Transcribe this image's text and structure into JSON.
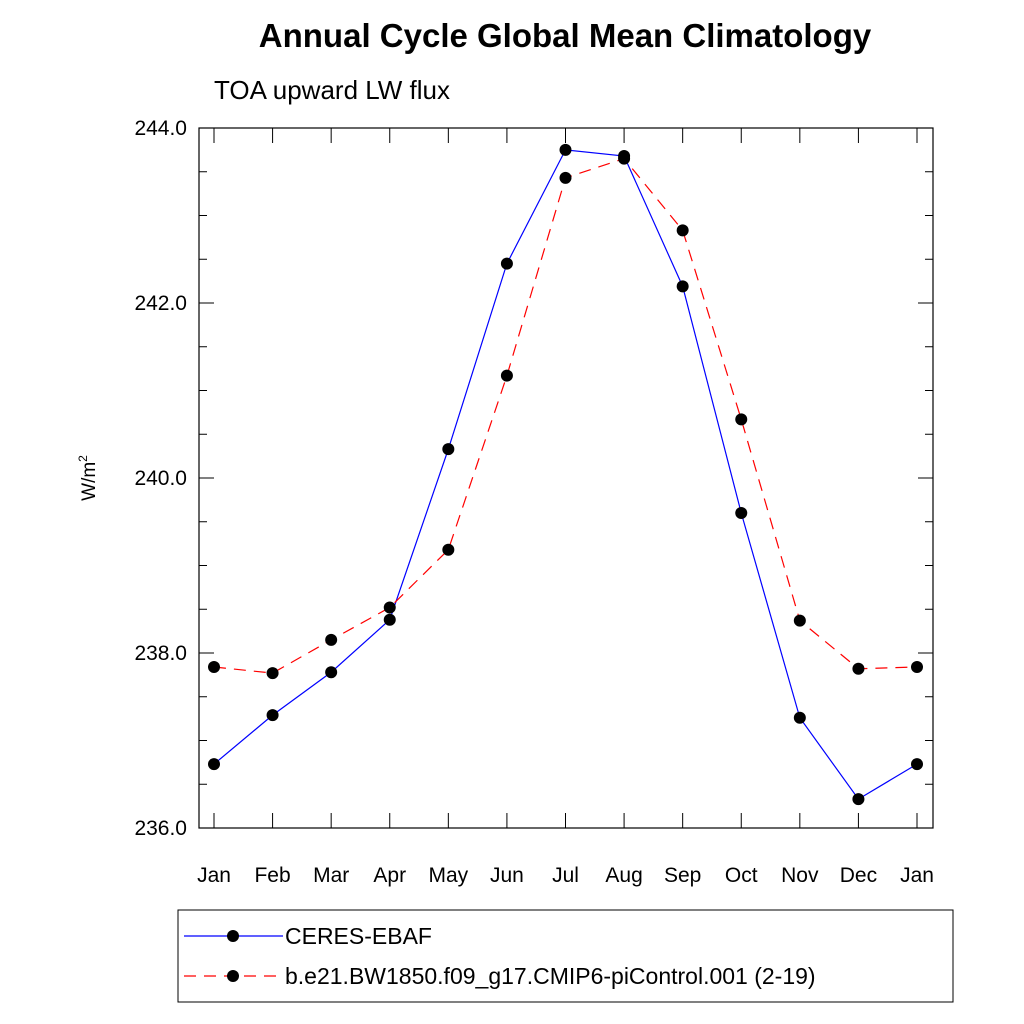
{
  "chart_data": {
    "type": "line",
    "title": "Annual Cycle Global Mean Climatology",
    "subtitle": "TOA upward LW flux",
    "ylabel": "W/m",
    "ylabel_sup": "2",
    "xlabel": "",
    "categories": [
      "Jan",
      "Feb",
      "Mar",
      "Apr",
      "May",
      "Jun",
      "Jul",
      "Aug",
      "Sep",
      "Oct",
      "Nov",
      "Dec",
      "Jan"
    ],
    "ylim": [
      236.0,
      244.0
    ],
    "yticks": [
      236.0,
      238.0,
      240.0,
      242.0,
      244.0
    ],
    "ytick_labels": [
      "236.0",
      "238.0",
      "240.0",
      "242.0",
      "244.0"
    ],
    "y_minor_step": 0.5,
    "grid": false,
    "legend_position": "bottom",
    "series": [
      {
        "name": "CERES-EBAF",
        "color": "#0000ff",
        "dash": "solid",
        "marker": "circle",
        "values": [
          236.73,
          237.29,
          237.78,
          238.38,
          240.33,
          242.45,
          243.75,
          243.68,
          242.19,
          239.6,
          237.26,
          236.33,
          236.73
        ]
      },
      {
        "name": "b.e21.BW1850.f09_g17.CMIP6-piControl.001 (2-19)",
        "color": "#ff0000",
        "dash": "dashed",
        "marker": "circle",
        "values": [
          237.84,
          237.77,
          238.15,
          238.52,
          239.18,
          241.17,
          243.43,
          243.65,
          242.83,
          240.67,
          238.37,
          237.82,
          237.84
        ]
      }
    ]
  }
}
